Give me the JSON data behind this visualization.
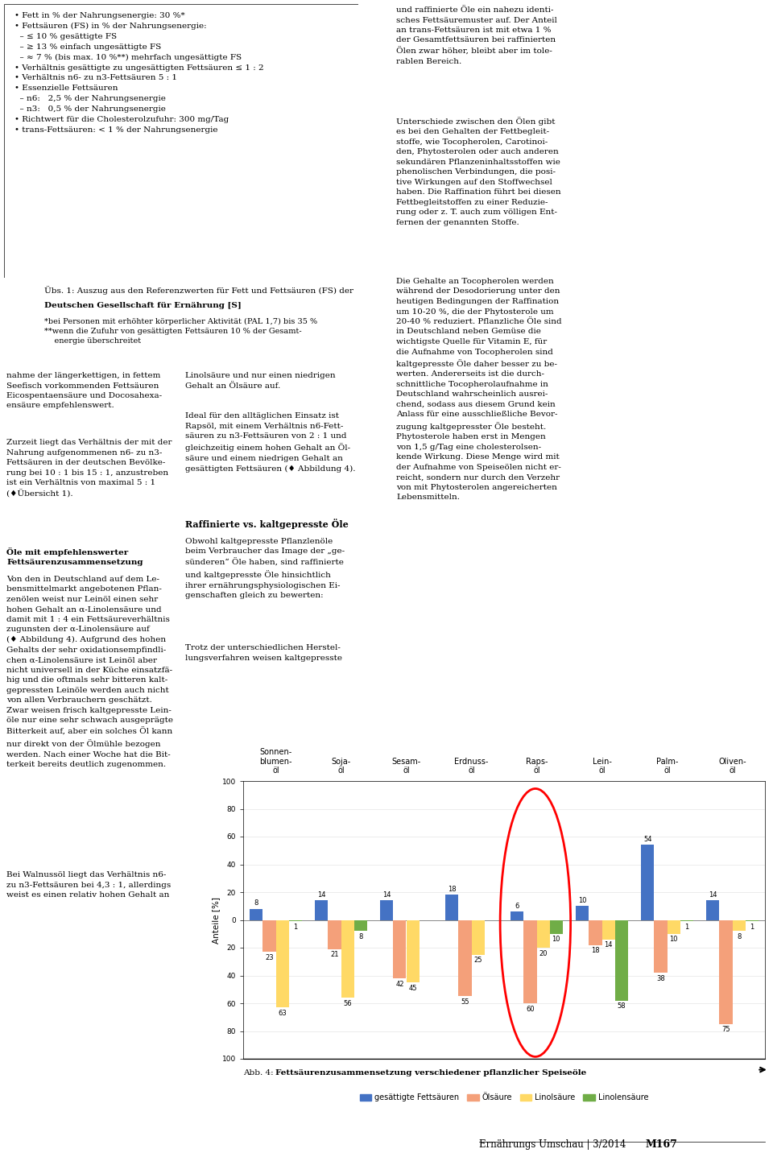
{
  "oils": [
    "Sonnen-\nblumen-\nöl",
    "Soja-\nöl",
    "Sesam-\nöl",
    "Erdnuss-\nöl",
    "Raps-\nöl",
    "Lein-\nöl",
    "Palm-\nöl",
    "Oliven-\nöl"
  ],
  "saettigt": [
    8,
    14,
    14,
    18,
    6,
    10,
    54,
    14
  ],
  "oelsaeure": [
    23,
    21,
    42,
    55,
    60,
    18,
    38,
    75
  ],
  "linolsaeure": [
    63,
    56,
    45,
    25,
    20,
    14,
    10,
    8
  ],
  "linolensaeure": [
    1,
    8,
    0,
    0,
    10,
    58,
    1,
    1
  ],
  "color_saettigt": "#4472C4",
  "color_oelsaeure": "#F4A07A",
  "color_linolsaeure": "#FFD966",
  "color_linolensaeure": "#70AD47",
  "ylabel": "Anteile [%]",
  "legend_labels": [
    "gesättigte Fettsäuren",
    "Ölsäure",
    "Linolsäure",
    "Linolensäure"
  ],
  "caption_prefix": "Abb. 4: ",
  "caption_bold": "Fettsäurenzusammensetzung verschiedener pflanzlicher Speiseöle",
  "footer": "Ernährungs Umschau | 3/2014",
  "footer_bold": "M167",
  "bullet_lines": [
    "• Fett in % der Nahrungsenergie: 30 %*",
    "• Fettsäuren (FS) in % der Nahrungsenergie:",
    "  – ≤ 10 % gesättigte FS",
    "  – ≥ 13 % einfach ungesättigte FS",
    "  – ≈ 7 % (bis max. 10 %**) mehrfach ungesättigte FS",
    "• Verhältnis gesättigte zu ungesättigten Fettsäuren ≤ 1 : 2",
    "• Verhältnis n6- zu n3-Fettsäuren 5 : 1",
    "• Essenzielle Fettsäuren",
    "  – n6:   2,5 % der Nahrungsenergie",
    "  – n3:   0,5 % der Nahrungsenergie",
    "• Richtwert für die Cholesterolzufuhr: 300 mg/Tag",
    "• trans-Fettsäuren: < 1 % der Nahrungsenergie"
  ],
  "uebersicht_lines": [
    "Übs. 1: Auszug aus den Referenzwerten für Fett und Fettsäuren (FS) der",
    "Deutschen Gesellschaft für Ernährung [S]",
    "*bei Personen mit erhöhter körperlicher Aktivität (PAL 1,7) bis 35 %",
    "**wenn die Zufuhr von gesättigten Fettsäuren 10 % der Gesamt-",
    "    energie überschreitet"
  ],
  "left_col_1": "nahme der längerkettigen, in fettem\nSeefisch vorkommenden Fettsäuren\nEicospentaensäure und Docosahexa-\nensäure empfehlenswert.",
  "left_col_2": "Zurzeit liegt das Verhältnis der mit der\nNahrung aufgenommenen n6- zu n3-\nFettsäuren in der deutschen Bevölke-\nrung bei 10 : 1 bis 15 : 1, anzustreben\nist ein Verhältnis von maximal 5 : 1\n(♦Übersicht 1).",
  "left_col_3": "Öle mit empfehlenswerter\nFettsäurenzusammensetzung",
  "left_col_4": "Von den in Deutschland auf dem Le-\nbensmittelmarkt angebotenen Pflan-\nzenölen weist nur Leinöl einen sehr\nhohen Gehalt an α-Linolensäure und\ndamit mit 1 : 4 ein Fettsäureverhältnis\nzugunsten der α-Linolensäure auf\n(♦ Abbildung 4). Aufgrund des hohen\nGehalts der sehr oxidationsempfindli-\nchen α-Linolensäure ist Leinöl aber\nnicht universell in der Küche einsatzfä-\nhig und die oftmals sehr bitteren kalt-\ngepressten Leinöle werden auch nicht\nvon allen Verbrauchern geschätzt.\nZwar weisen frisch kaltgepresste Lein-\nöle nur eine sehr schwach ausgeprägte\nBitterkeit auf, aber ein solches Öl kann\nnur direkt von der Ölmühle bezogen\nwerden. Nach einer Woche hat die Bit-\nterkeit bereits deutlich zugenommen.",
  "left_col_5": "Bei Walnussöl liegt das Verhältnis n6-\nzu n3-Fettsäuren bei 4,3 : 1, allerdings\nweist es einen relativ hohen Gehalt an",
  "mid_col_1": "Linolsäure und nur einen niedrigen\nGehalt an Ölsäure auf.",
  "mid_col_2": "Ideal für den alltäglichen Einsatz ist\nRapsöl, mit einem Verhältnis n6-Fett-\nsäuren zu n3-Fettsäuren von 2 : 1 und\ngleichzeitig einem hohen Gehalt an Öl-\nsäure und einem niedrigen Gehalt an\ngesättigten Fettsäuren (♦ Abbildung 4).",
  "mid_col_3": "Raffinierte vs. kaltgepresste Öle",
  "mid_col_4": "Obwohl kaltgepresste Pflanzlenöle\nbeim Verbraucher das Image der „ge-\nsünderen“ Öle haben, sind raffinierte\nund kaltgepresste Öle hinsichtlich\nihrer ernährungsphysiologischen Ei-\ngenschaften gleich zu bewerten:",
  "mid_col_5": "Trotz der unterschiedlichen Herstel-\nlungsverfahren weisen kaltgepresste",
  "right_col_1": "und raffinierte Öle ein nahezu identi-\nsches Fettsäuremuster auf. Der Anteil\nan trans-Fettsäuren ist mit etwa 1 %\nder Gesamtfettsäuren bei raffinierten\nÖlen zwar höher, bleibt aber im tole-\nrablen Bereich.",
  "right_col_2": "Unterschiede zwischen den Ölen gibt\nes bei den Gehalten der Fettbegleit-\nstoffe, wie Tocopherolen, Carotinoi-\nden, Phytosterolen oder auch anderen\nsekundären Pflanzeninhaltsstoffen wie\nphenolischen Verbindungen, die posi-\ntive Wirkungen auf den Stoffwechsel\nhaben. Die Raffination führt bei diesen\nFettbegleitstoffen zu einer Reduzie-\nrung oder z. T. auch zum völligen Ent-\nfernen der genannten Stoffe.",
  "right_col_3": "Die Gehalte an Tocopherolen werden\nwährend der Desodorierung unter den\nheutigen Bedingungen der Raffination\num 10-20 %, die der Phytosterole um\n20-40 % reduziert. Pflanzliche Öle sind\nin Deutschland neben Gemüse die\nwichtigste Quelle für Vitamin E, für\ndie Aufnahme von Tocopherolen sind\nkaltgepresste Öle daher besser zu be-\nwerten. Andererseits ist die durch-\nschnittliche Tocopherolaufnahme in\nDeutschland wahrscheinlich ausrei-\nchend, sodass aus diesem Grund kein\nAnlass für eine ausschließliche Bevor-\nzugung kaltgepresster Öle besteht.\nPhytosterole haben erst in Mengen\nvon 1,5 g/Tag eine cholesterolsen-\nkende Wirkung. Diese Menge wird mit\nder Aufnahme von Speiseölen nicht er-\nreicht, sondern nur durch den Verzehr\nvon mit Phytosterolen angereicherten\nLebensmitteln."
}
